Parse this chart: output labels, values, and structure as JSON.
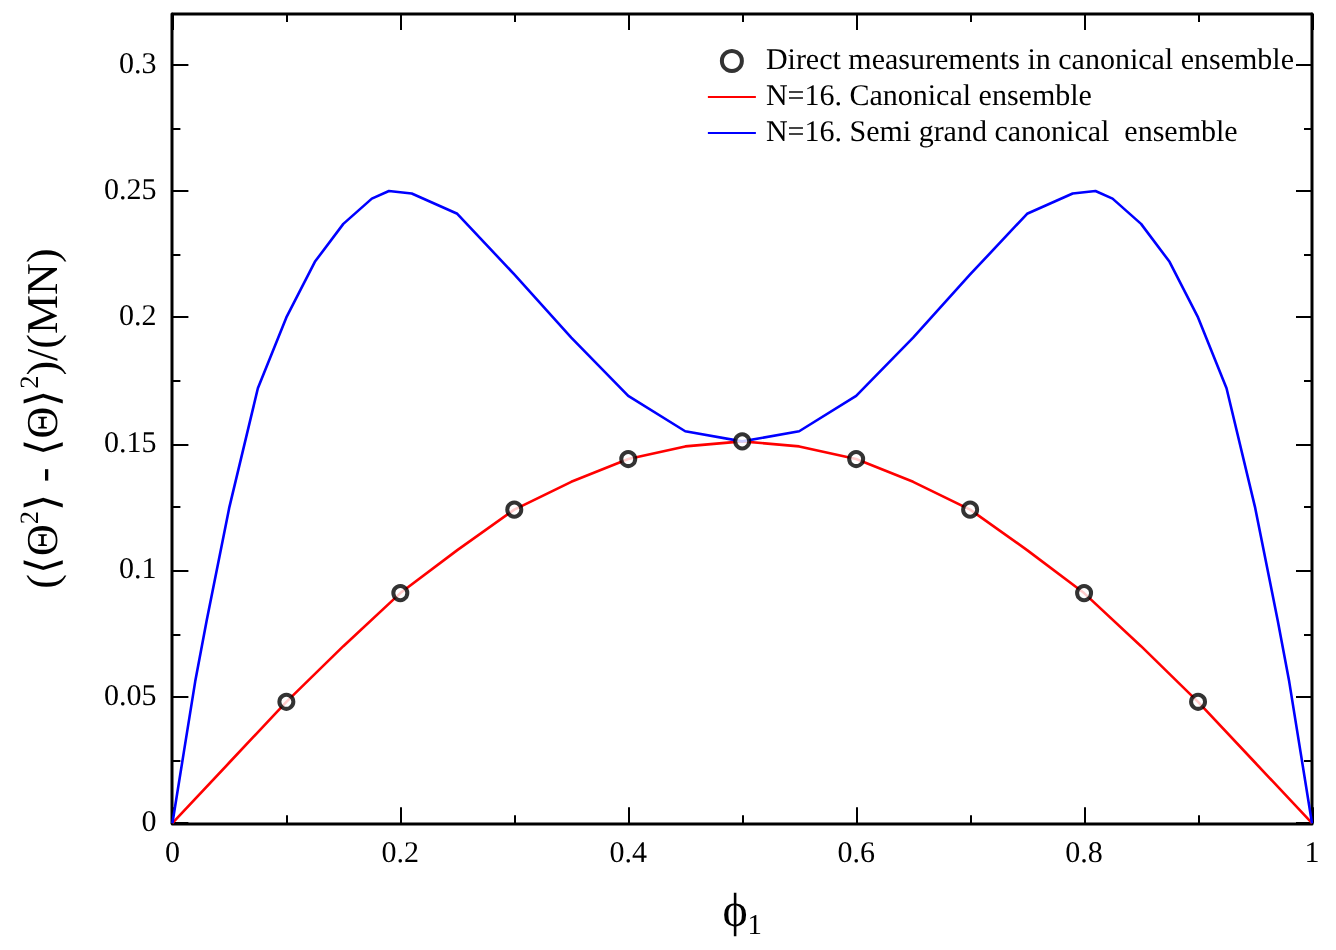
{
  "chart_data": {
    "type": "line",
    "xlabel": "ϕ$_{1}$",
    "ylabel": "(⟨Θ$^{2}$⟩ - ⟨Θ⟩$^{2}$)/(MN)",
    "xlim": [
      0,
      1
    ],
    "xticks": [
      0,
      0.2,
      0.4,
      0.6,
      0.8,
      1
    ],
    "ylim": [
      0,
      0.32
    ],
    "yticks": [
      0,
      0.05,
      0.1,
      0.15,
      0.2,
      0.25,
      0.3
    ],
    "grid": false,
    "legend": "top right",
    "line_style": "solid",
    "series": [
      {
        "name": "Direct measurements in canonical ensemble",
        "type": "scatter",
        "marker": "circle",
        "color": "#000000",
        "x": [
          0.1,
          0.2,
          0.3,
          0.4,
          0.5,
          0.6,
          0.7,
          0.8,
          0.9
        ],
        "values": [
          0.048,
          0.091,
          0.124,
          0.144,
          0.151,
          0.144,
          0.124,
          0.091,
          0.048
        ]
      },
      {
        "name": "N=16. Canonical ensemble",
        "marker": "none",
        "color": "#ff0000",
        "x": [
          0,
          0.05,
          0.1,
          0.15,
          0.2,
          0.25,
          0.3,
          0.35,
          0.4,
          0.45,
          0.5,
          0.55,
          0.6,
          0.65,
          0.7,
          0.75,
          0.8,
          0.85,
          0.9,
          0.95,
          1
        ],
        "values": [
          0,
          0.024,
          0.048,
          0.07,
          0.091,
          0.108,
          0.124,
          0.135,
          0.144,
          0.149,
          0.151,
          0.149,
          0.144,
          0.135,
          0.124,
          0.108,
          0.091,
          0.07,
          0.048,
          0.024,
          0
        ]
      },
      {
        "name": "N=16. Semi grand canonical  ensemble",
        "marker": "none",
        "color": "#0000ff",
        "x": [
          0,
          0.01,
          0.02,
          0.03,
          0.05,
          0.075,
          0.1,
          0.125,
          0.15,
          0.175,
          0.19,
          0.21,
          0.25,
          0.3,
          0.35,
          0.4,
          0.45,
          0.5,
          0.55,
          0.6,
          0.65,
          0.7,
          0.75,
          0.79,
          0.81,
          0.825,
          0.85,
          0.875,
          0.9,
          0.925,
          0.95,
          0.97,
          0.98,
          0.99,
          1
        ],
        "values": [
          0,
          0.028,
          0.056,
          0.08,
          0.125,
          0.172,
          0.2,
          0.222,
          0.237,
          0.247,
          0.25,
          0.249,
          0.241,
          0.217,
          0.192,
          0.169,
          0.155,
          0.151,
          0.155,
          0.169,
          0.192,
          0.217,
          0.241,
          0.249,
          0.25,
          0.247,
          0.237,
          0.222,
          0.2,
          0.172,
          0.125,
          0.08,
          0.056,
          0.028,
          0
        ]
      }
    ]
  }
}
